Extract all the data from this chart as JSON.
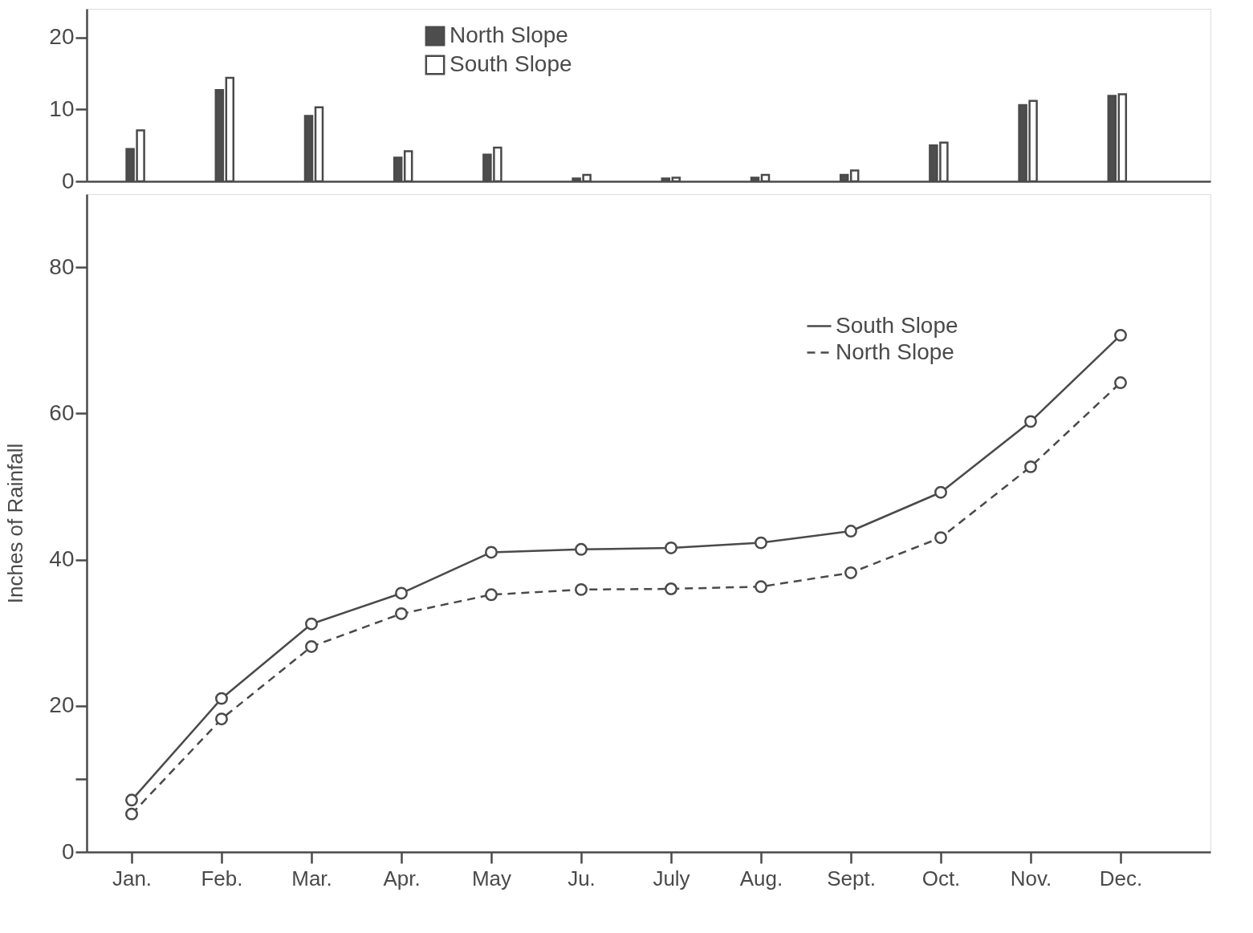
{
  "chart_data": [
    {
      "type": "bar",
      "categories": [
        null,
        null,
        null,
        null,
        null,
        null,
        null,
        null,
        null,
        null,
        null,
        null
      ],
      "ylim": [
        0,
        24
      ],
      "yticks": [
        0,
        10,
        20
      ],
      "tick_labels": "y",
      "grid": false,
      "legend": "top",
      "series": [
        {
          "name": "North Slope",
          "color": "#4d4d4d",
          "values": [
            4.5,
            12.7,
            9.1,
            3.3,
            3.7,
            0.4,
            0.4,
            0.5,
            0.9,
            5.0,
            10.6,
            11.9
          ]
        },
        {
          "name": "South Slope",
          "color": "#ffffff",
          "values": [
            7.1,
            14.4,
            10.3,
            4.2,
            4.7,
            0.9,
            0.5,
            0.9,
            1.5,
            5.4,
            11.2,
            12.1
          ]
        }
      ]
    },
    {
      "type": "line",
      "ylabel": "Inches of Rainfall",
      "categories": [
        "Jan.",
        "Feb.",
        "Mar.",
        "Apr.",
        "May",
        "Ju.",
        "July",
        "Aug.",
        "Sept.",
        "Oct.",
        "Nov.",
        "Dec."
      ],
      "ylim": [
        0,
        90
      ],
      "grid": false,
      "legend": "top right",
      "marker": "circle",
      "yticks": [
        0,
        {
          "value": 10,
          "label": null
        },
        20,
        40,
        60,
        80
      ],
      "series": [
        {
          "name": "South Slope",
          "color": "#4a4a4a",
          "line_style": "solid",
          "values": [
            7.1,
            21.0,
            31.2,
            35.4,
            41.0,
            41.4,
            41.6,
            42.3,
            43.9,
            49.2,
            58.9,
            70.7
          ]
        },
        {
          "name": "North Slope",
          "color": "#4a4a4a",
          "line_style": "dashed",
          "values": [
            5.2,
            18.2,
            28.1,
            32.6,
            35.2,
            35.9,
            36.0,
            36.3,
            38.2,
            43.0,
            52.7,
            64.2
          ]
        }
      ]
    }
  ]
}
